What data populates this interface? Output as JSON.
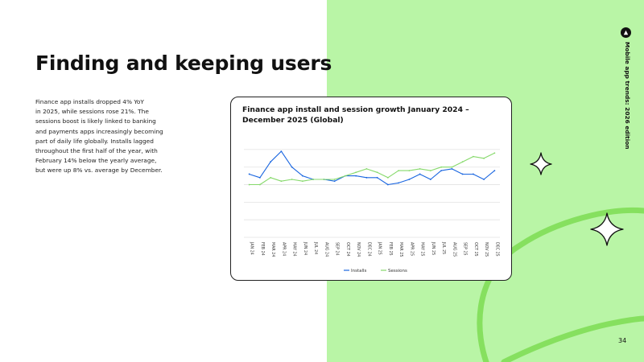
{
  "page": {
    "title": "Finding and keeping users",
    "body_lines": [
      "Finance app installs dropped 4% YoY",
      "in 2025, while sessions rose 21%. The",
      "sessions boost is likely linked to banking",
      "and payments apps increasingly becoming",
      "part of daily life globally. Installs lagged",
      "throughout the first half of the year, with",
      "February 14% below the yearly average,",
      "but were up 8% vs. average by December."
    ],
    "side_label": "Mobile app trends: 2026 edition",
    "page_number": "34",
    "colors": {
      "panel": "#b9f5a6",
      "loop": "#86e05f",
      "installs": "#1a66e0",
      "sessions": "#86d96b"
    }
  },
  "chart_data": {
    "type": "line",
    "title_lines": [
      "Finance app install and session growth January 2024 –",
      "December 2025 (Global)"
    ],
    "categories": [
      "JAN 24",
      "FEB 24",
      "MAR 24",
      "APR 24",
      "MAY 24",
      "JUN 24",
      "JUL 24",
      "AUG 24",
      "SEP 24",
      "OCT 24",
      "NOV 24",
      "DEC 24",
      "JAN 25",
      "FEB 25",
      "MAR 25",
      "APR 25",
      "MAY 25",
      "JUN 25",
      "JUL 25",
      "AUG 25",
      "SEP 25",
      "OCT 25",
      "NOV 25",
      "DEC 25"
    ],
    "series": [
      {
        "name": "Installs",
        "color": "#1a66e0",
        "values": [
          106,
          104,
          113,
          119,
          110,
          105,
          103,
          103,
          102,
          105,
          105,
          104,
          104,
          100,
          101,
          103,
          106,
          103,
          108,
          109,
          106,
          106,
          103,
          108
        ]
      },
      {
        "name": "Sessions",
        "color": "#86d96b",
        "values": [
          100,
          100,
          104,
          102,
          103,
          102,
          103,
          103,
          103,
          105,
          107,
          109,
          107,
          104,
          108,
          108,
          109,
          108,
          110,
          110,
          113,
          116,
          115,
          118
        ]
      }
    ],
    "ylim": [
      70,
      125
    ],
    "gridlines": [
      70,
      80,
      90,
      100,
      110,
      120
    ],
    "xlabel": "",
    "ylabel": "",
    "legend_position": "bottom-center"
  }
}
